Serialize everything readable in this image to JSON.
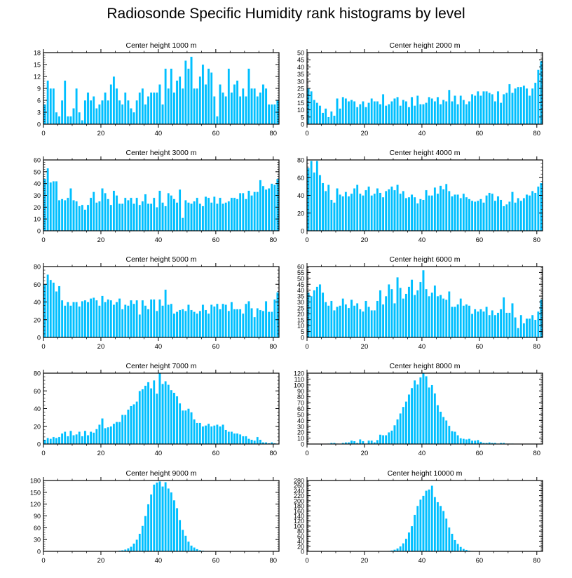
{
  "title": "Radiosonde Specific Humidity rank histograms by level",
  "colors": {
    "bar": "#00bfff",
    "bar_edge": "#ffffff",
    "axis": "#000000"
  },
  "chart_data": [
    {
      "type": "bar",
      "title": "Center height 1000 m",
      "xlim": [
        0,
        82
      ],
      "ylim": [
        0,
        18
      ],
      "xticks": [
        0,
        20,
        40,
        60,
        80
      ],
      "yticks": [
        0,
        3,
        6,
        9,
        12,
        15,
        18
      ],
      "values": [
        5,
        11,
        9,
        9,
        3,
        2,
        6,
        11,
        2,
        2,
        4,
        9,
        3,
        1,
        6,
        8,
        6,
        7,
        4,
        5,
        6,
        8,
        6,
        10,
        12,
        9,
        6,
        5,
        8,
        6,
        4,
        3,
        6,
        8,
        9,
        5,
        7,
        8,
        8,
        8,
        10,
        5,
        14,
        9,
        14,
        8,
        11,
        12,
        9,
        16,
        14,
        17,
        9,
        9,
        12,
        15,
        10,
        14,
        13,
        7,
        2,
        10,
        8,
        7,
        14,
        8,
        10,
        11,
        7,
        9,
        7,
        14,
        9,
        9,
        7,
        8,
        10,
        9,
        5,
        5,
        5,
        6
      ]
    },
    {
      "type": "bar",
      "title": "Center height 2000 m",
      "xlim": [
        0,
        82
      ],
      "ylim": [
        0,
        50
      ],
      "xticks": [
        0,
        20,
        40,
        60,
        80
      ],
      "yticks": [
        0,
        5,
        10,
        15,
        20,
        25,
        30,
        35,
        40,
        45,
        50
      ],
      "values": [
        25,
        23,
        17,
        15,
        13,
        8,
        11,
        5,
        9,
        6,
        18,
        11,
        19,
        18,
        16,
        17,
        16,
        12,
        14,
        16,
        12,
        15,
        18,
        16,
        16,
        14,
        21,
        13,
        14,
        16,
        18,
        19,
        13,
        17,
        16,
        12,
        19,
        13,
        20,
        14,
        14,
        15,
        19,
        18,
        16,
        19,
        14,
        17,
        16,
        24,
        16,
        20,
        14,
        20,
        17,
        14,
        16,
        21,
        20,
        23,
        20,
        23,
        23,
        22,
        21,
        16,
        23,
        15,
        21,
        22,
        28,
        22,
        25,
        26,
        26,
        27,
        25,
        20,
        25,
        29,
        38,
        44
      ]
    },
    {
      "type": "bar",
      "title": "Center height 3000 m",
      "xlim": [
        0,
        82
      ],
      "ylim": [
        0,
        60
      ],
      "xticks": [
        0,
        20,
        40,
        60,
        80
      ],
      "yticks": [
        0,
        10,
        20,
        30,
        40,
        50,
        60
      ],
      "values": [
        44,
        53,
        41,
        42,
        42,
        26,
        27,
        26,
        28,
        36,
        26,
        25,
        21,
        22,
        18,
        22,
        28,
        33,
        24,
        25,
        36,
        32,
        27,
        22,
        34,
        30,
        23,
        23,
        28,
        26,
        28,
        23,
        28,
        22,
        25,
        31,
        23,
        23,
        28,
        20,
        34,
        24,
        21,
        32,
        30,
        27,
        24,
        35,
        11,
        26,
        24,
        23,
        25,
        28,
        23,
        21,
        29,
        28,
        24,
        29,
        23,
        28,
        23,
        24,
        25,
        28,
        28,
        27,
        32,
        32,
        27,
        34,
        30,
        33,
        33,
        43,
        38,
        35,
        36,
        40,
        39,
        44
      ]
    },
    {
      "type": "bar",
      "title": "Center height 4000 m",
      "xlim": [
        0,
        82
      ],
      "ylim": [
        0,
        80
      ],
      "xticks": [
        0,
        20,
        40,
        60,
        80
      ],
      "yticks": [
        0,
        20,
        40,
        60,
        80
      ],
      "values": [
        71,
        79,
        66,
        79,
        63,
        54,
        45,
        52,
        35,
        32,
        48,
        41,
        39,
        44,
        39,
        42,
        48,
        52,
        42,
        40,
        46,
        50,
        40,
        42,
        48,
        43,
        38,
        45,
        47,
        50,
        46,
        52,
        42,
        45,
        37,
        38,
        41,
        38,
        31,
        36,
        35,
        46,
        40,
        40,
        49,
        42,
        51,
        47,
        53,
        45,
        39,
        41,
        41,
        37,
        42,
        38,
        36,
        34,
        33,
        34,
        36,
        32,
        40,
        43,
        42,
        34,
        39,
        35,
        28,
        30,
        33,
        44,
        32,
        37,
        34,
        37,
        41,
        40,
        45,
        43,
        50,
        54
      ]
    },
    {
      "type": "bar",
      "title": "Center height 5000 m",
      "xlim": [
        0,
        82
      ],
      "ylim": [
        0,
        80
      ],
      "xticks": [
        0,
        20,
        40,
        60,
        80
      ],
      "yticks": [
        0,
        20,
        40,
        60,
        80
      ],
      "values": [
        60,
        71,
        65,
        62,
        52,
        58,
        42,
        36,
        40,
        36,
        40,
        40,
        35,
        41,
        42,
        40,
        44,
        45,
        42,
        36,
        47,
        40,
        43,
        42,
        37,
        40,
        44,
        32,
        37,
        36,
        42,
        38,
        42,
        26,
        42,
        36,
        32,
        43,
        43,
        30,
        43,
        36,
        54,
        37,
        38,
        27,
        29,
        31,
        32,
        30,
        37,
        31,
        29,
        27,
        30,
        37,
        31,
        27,
        37,
        35,
        38,
        32,
        38,
        37,
        30,
        40,
        32,
        32,
        32,
        27,
        38,
        41,
        33,
        23,
        33,
        31,
        30,
        41,
        29,
        29,
        43,
        51
      ]
    },
    {
      "type": "bar",
      "title": "Center height 6000 m",
      "xlim": [
        0,
        82
      ],
      "ylim": [
        0,
        60
      ],
      "xticks": [
        0,
        20,
        40,
        60,
        80
      ],
      "yticks": [
        0,
        5,
        10,
        15,
        20,
        25,
        30,
        35,
        40,
        45,
        50,
        55,
        60
      ],
      "values": [
        38,
        35,
        40,
        43,
        45,
        38,
        30,
        27,
        31,
        23,
        26,
        27,
        33,
        28,
        25,
        32,
        27,
        29,
        24,
        22,
        31,
        26,
        23,
        23,
        31,
        40,
        28,
        35,
        45,
        41,
        29,
        51,
        42,
        33,
        37,
        43,
        49,
        36,
        40,
        47,
        57,
        41,
        35,
        38,
        44,
        35,
        36,
        33,
        32,
        39,
        26,
        26,
        28,
        33,
        27,
        28,
        27,
        20,
        24,
        22,
        24,
        22,
        26,
        19,
        23,
        19,
        21,
        24,
        34,
        21,
        21,
        29,
        17,
        8,
        19,
        12,
        16,
        16,
        19,
        15,
        22,
        32
      ]
    },
    {
      "type": "bar",
      "title": "Center height 7000 m",
      "xlim": [
        0,
        82
      ],
      "ylim": [
        0,
        80
      ],
      "xticks": [
        0,
        20,
        40,
        60,
        80
      ],
      "yticks": [
        0,
        20,
        40,
        60,
        80
      ],
      "values": [
        5,
        7,
        6,
        8,
        7,
        8,
        12,
        14,
        9,
        15,
        10,
        11,
        14,
        9,
        15,
        10,
        14,
        13,
        17,
        22,
        29,
        18,
        19,
        20,
        23,
        25,
        25,
        33,
        33,
        39,
        43,
        45,
        48,
        60,
        62,
        66,
        70,
        63,
        72,
        57,
        80,
        68,
        71,
        67,
        61,
        58,
        54,
        46,
        38,
        38,
        40,
        36,
        28,
        24,
        24,
        20,
        21,
        23,
        20,
        21,
        22,
        20,
        22,
        16,
        14,
        14,
        12,
        12,
        11,
        9,
        9,
        6,
        5,
        4,
        8,
        5,
        2,
        2,
        1,
        2,
        1,
        0
      ]
    },
    {
      "type": "bar",
      "title": "Center height 8000 m",
      "xlim": [
        0,
        82
      ],
      "ylim": [
        0,
        120
      ],
      "xticks": [
        0,
        20,
        40,
        60,
        80
      ],
      "yticks": [
        0,
        10,
        20,
        30,
        40,
        50,
        60,
        70,
        80,
        90,
        100,
        110,
        120
      ],
      "values": [
        0,
        0,
        0,
        0,
        0,
        0,
        0,
        1,
        2,
        2,
        1,
        0,
        2,
        3,
        3,
        6,
        5,
        2,
        8,
        5,
        1,
        6,
        6,
        3,
        7,
        16,
        15,
        15,
        20,
        23,
        32,
        42,
        52,
        63,
        72,
        84,
        95,
        108,
        101,
        113,
        121,
        115,
        96,
        100,
        86,
        66,
        55,
        46,
        40,
        31,
        22,
        21,
        15,
        10,
        9,
        8,
        9,
        6,
        6,
        7,
        4,
        2,
        2,
        3,
        2,
        2,
        1,
        2,
        2,
        1,
        1,
        1,
        0,
        0,
        0,
        0,
        0,
        0,
        0,
        0,
        0,
        0
      ]
    },
    {
      "type": "bar",
      "title": "Center height 9000 m",
      "xlim": [
        0,
        82
      ],
      "ylim": [
        0,
        180
      ],
      "xticks": [
        0,
        20,
        40,
        60,
        80
      ],
      "yticks": [
        0,
        30,
        60,
        90,
        120,
        150,
        180
      ],
      "values": [
        0,
        0,
        0,
        0,
        0,
        0,
        0,
        0,
        0,
        0,
        0,
        0,
        0,
        0,
        0,
        0,
        0,
        0,
        0,
        0,
        0,
        0,
        0,
        0,
        0,
        1,
        2,
        3,
        5,
        8,
        12,
        20,
        30,
        45,
        65,
        90,
        120,
        145,
        170,
        175,
        178,
        165,
        176,
        160,
        150,
        130,
        110,
        80,
        55,
        40,
        25,
        15,
        10,
        6,
        3,
        2,
        1,
        1,
        0,
        0,
        0,
        0,
        0,
        0,
        0,
        0,
        0,
        0,
        0,
        0,
        0,
        0,
        0,
        0,
        0,
        0,
        0,
        0,
        0,
        0,
        0,
        0
      ]
    },
    {
      "type": "bar",
      "title": "Center height 10000 m",
      "xlim": [
        0,
        82
      ],
      "ylim": [
        0,
        280
      ],
      "xticks": [
        0,
        20,
        40,
        60,
        80
      ],
      "yticks": [
        0,
        20,
        40,
        60,
        80,
        100,
        120,
        140,
        160,
        180,
        200,
        220,
        240,
        260,
        280
      ],
      "values": [
        0,
        0,
        0,
        0,
        0,
        0,
        0,
        0,
        0,
        0,
        0,
        0,
        0,
        0,
        0,
        0,
        0,
        0,
        0,
        0,
        0,
        0,
        0,
        0,
        0,
        0,
        0,
        1,
        2,
        4,
        7,
        12,
        20,
        32,
        50,
        75,
        100,
        145,
        180,
        205,
        220,
        240,
        245,
        260,
        215,
        195,
        180,
        160,
        130,
        95,
        70,
        45,
        30,
        18,
        10,
        6,
        3,
        2,
        1,
        1,
        0,
        0,
        0,
        0,
        0,
        0,
        0,
        0,
        0,
        0,
        0,
        0,
        0,
        0,
        0,
        0,
        0,
        0,
        0,
        0,
        0,
        0
      ]
    }
  ]
}
